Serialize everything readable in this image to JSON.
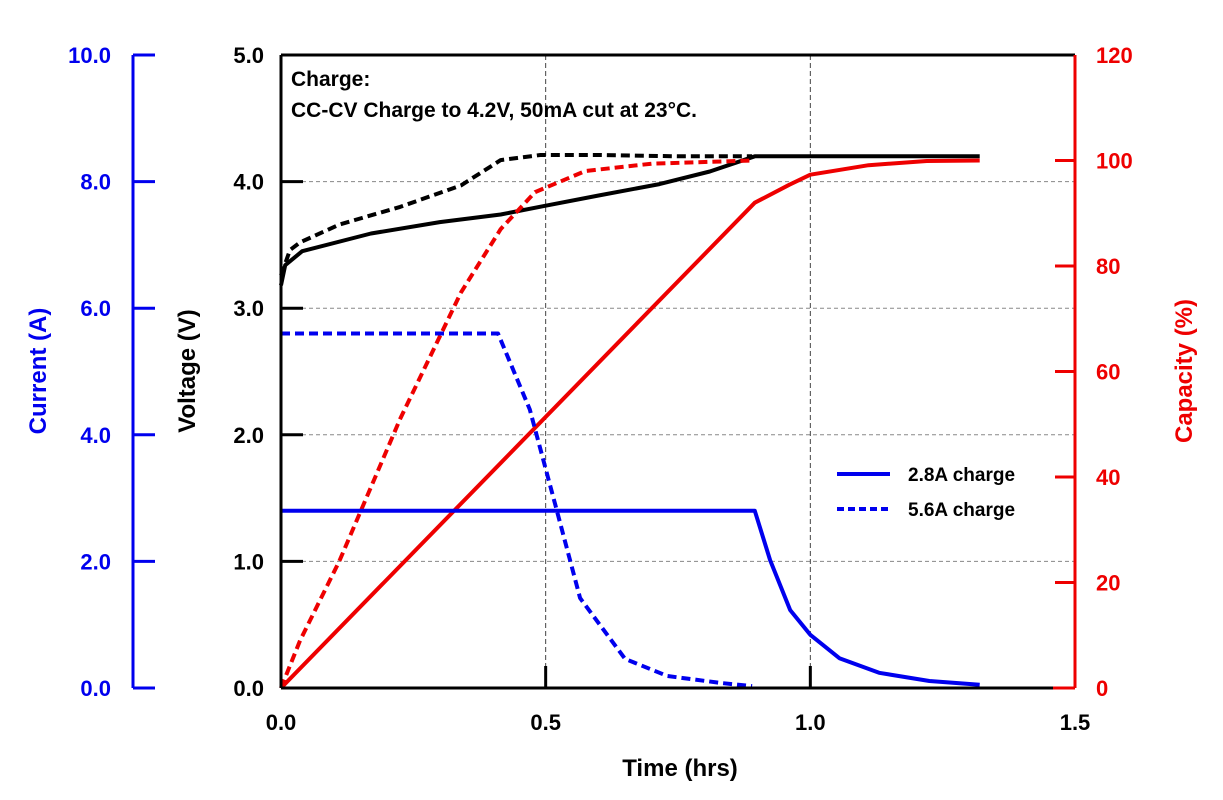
{
  "chart_data": {
    "type": "line",
    "title": "",
    "annotation": {
      "line1": "Charge:",
      "line2": "CC-CV Charge to 4.2V, 50mA cut at 23°C."
    },
    "x_axis": {
      "label": "Time (hrs)",
      "range": [
        0,
        1.5
      ],
      "ticks": [
        0,
        0.5,
        1.0,
        1.5
      ],
      "tick_labels": [
        "0.0",
        "0.5",
        "1.0",
        "1.5"
      ]
    },
    "y_axes": {
      "current": {
        "label": "Current (A)",
        "color": "#0000ee",
        "range": [
          0,
          10
        ],
        "ticks": [
          0,
          2,
          4,
          6,
          8,
          10
        ],
        "tick_labels": [
          "0.0",
          "2.0",
          "4.0",
          "6.0",
          "8.0",
          "10.0"
        ],
        "placement": "far-left"
      },
      "voltage": {
        "label": "Voltage (V)",
        "color": "#000000",
        "range": [
          0,
          5
        ],
        "ticks": [
          0,
          1,
          2,
          3,
          4,
          5
        ],
        "tick_labels": [
          "0.0",
          "1.0",
          "2.0",
          "3.0",
          "4.0",
          "5.0"
        ],
        "placement": "left"
      },
      "capacity": {
        "label": "Capacity (%)",
        "color": "#ee0000",
        "range": [
          0,
          120
        ],
        "ticks": [
          0,
          20,
          40,
          60,
          80,
          100,
          120
        ],
        "tick_labels": [
          "0",
          "20",
          "40",
          "60",
          "80",
          "100",
          "120"
        ],
        "placement": "right"
      }
    },
    "grid": true,
    "legend": {
      "placement": "center-right",
      "entries": [
        {
          "label": "2.8A charge",
          "style": "solid",
          "color": "#0000ee"
        },
        {
          "label": "5.6A charge",
          "style": "dashed",
          "color": "#0000ee"
        }
      ]
    },
    "series": [
      {
        "name": "Voltage 2.8A charge",
        "axis": "voltage",
        "style": "solid",
        "color": "#000000",
        "x": [
          0,
          0.008,
          0.04,
          0.17,
          0.3,
          0.415,
          0.5,
          0.6,
          0.715,
          0.81,
          0.895,
          1.0,
          1.1,
          1.2,
          1.32
        ],
        "y": [
          3.18,
          3.34,
          3.45,
          3.59,
          3.68,
          3.74,
          3.81,
          3.89,
          3.98,
          4.08,
          4.2,
          4.2,
          4.2,
          4.2,
          4.2
        ]
      },
      {
        "name": "Voltage 5.6A charge",
        "axis": "voltage",
        "style": "dashed",
        "color": "#000000",
        "x": [
          0,
          0.017,
          0.036,
          0.11,
          0.225,
          0.34,
          0.415,
          0.49,
          0.6,
          0.75,
          0.89
        ],
        "y": [
          3.26,
          3.46,
          3.52,
          3.66,
          3.8,
          3.97,
          4.17,
          4.21,
          4.21,
          4.2,
          4.2
        ]
      },
      {
        "name": "Capacity 5.6A charge",
        "axis": "capacity",
        "style": "dashed",
        "color": "#ee0000",
        "x": [
          0,
          0.036,
          0.11,
          0.225,
          0.34,
          0.415,
          0.48,
          0.575,
          0.7,
          0.89
        ],
        "y": [
          0,
          9,
          24,
          51,
          75,
          87,
          94,
          98,
          99.4,
          100
        ]
      },
      {
        "name": "Capacity 2.8A charge",
        "axis": "capacity",
        "style": "solid",
        "color": "#ee0000",
        "x": [
          0,
          0.895,
          0.96,
          1.0,
          1.11,
          1.22,
          1.32
        ],
        "y": [
          0,
          92,
          95.4,
          97.3,
          99.1,
          99.9,
          100
        ]
      },
      {
        "name": "Current 5.6A charge",
        "axis": "current",
        "style": "dashed",
        "color": "#0000ee",
        "x": [
          0,
          0.41,
          0.47,
          0.518,
          0.565,
          0.65,
          0.73,
          0.83,
          0.89
        ],
        "y": [
          5.6,
          5.6,
          4.4,
          2.9,
          1.42,
          0.46,
          0.19,
          0.08,
          0.03
        ]
      },
      {
        "name": "Current 2.8A charge",
        "axis": "current",
        "style": "solid",
        "color": "#0000ee",
        "x": [
          0,
          0.895,
          0.924,
          0.962,
          1.0,
          1.055,
          1.13,
          1.225,
          1.32
        ],
        "y": [
          2.8,
          2.8,
          2.02,
          1.23,
          0.84,
          0.47,
          0.24,
          0.11,
          0.05
        ]
      }
    ]
  }
}
